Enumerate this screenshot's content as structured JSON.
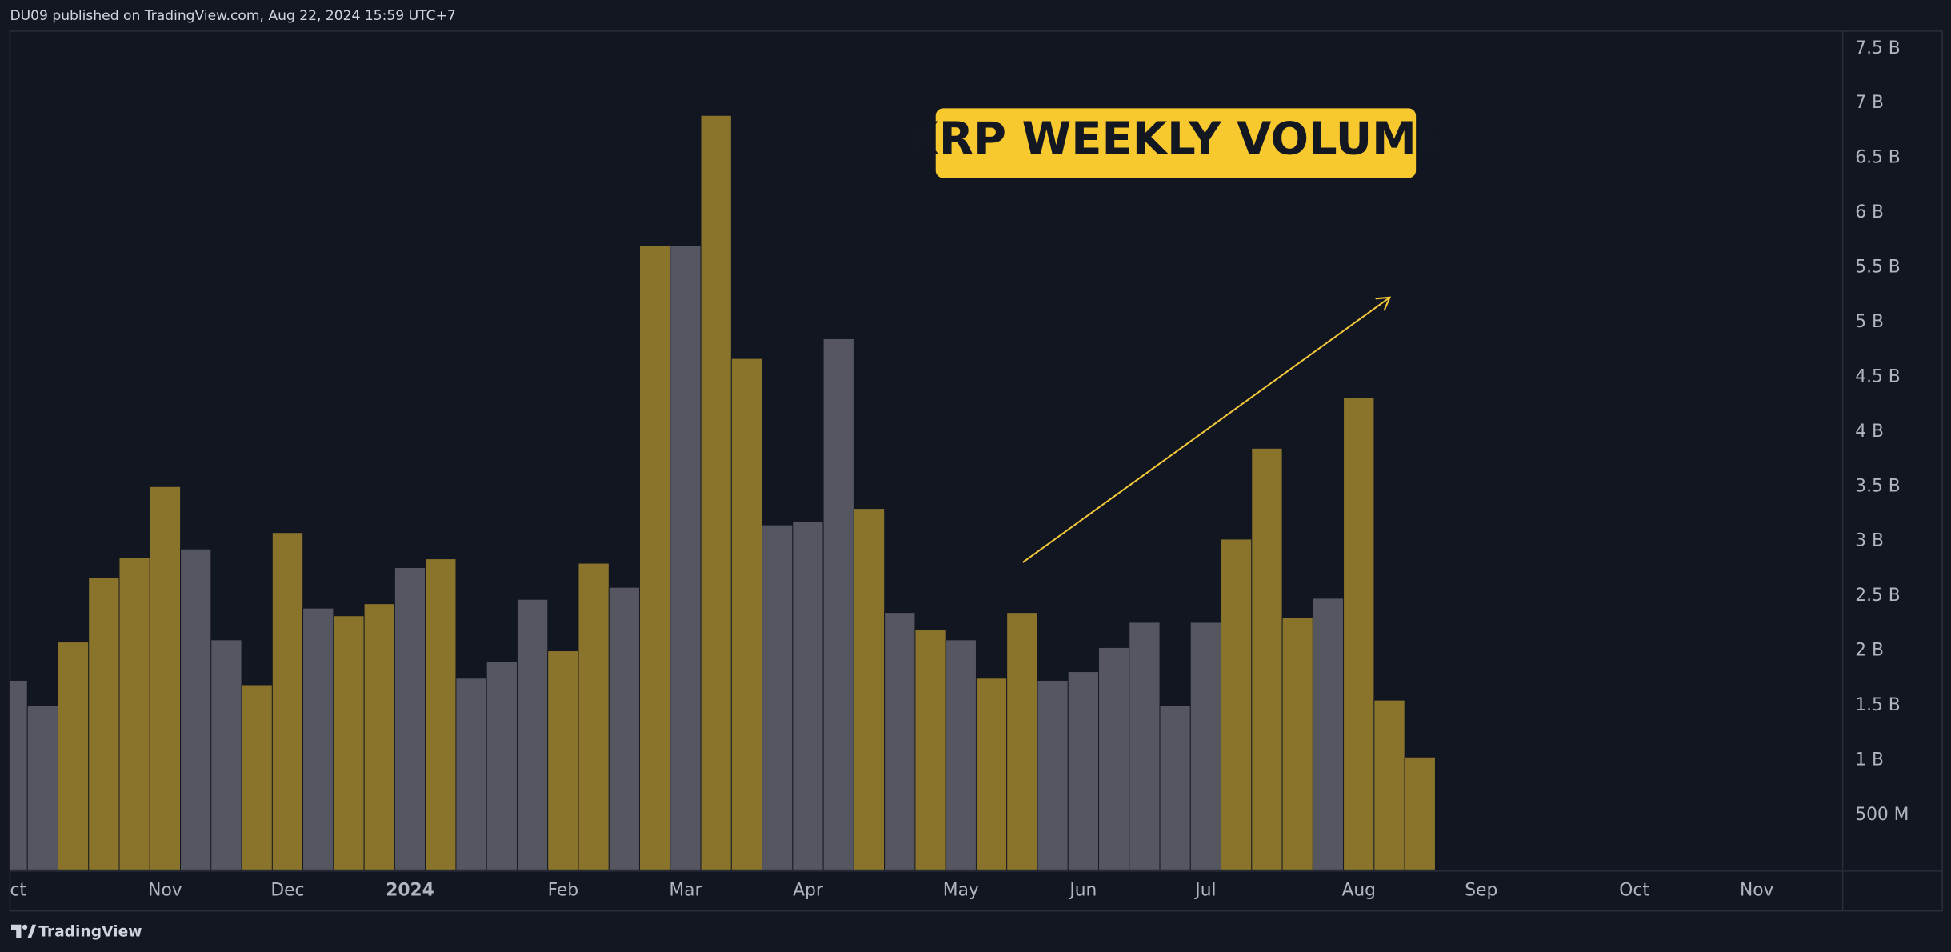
{
  "header": {
    "text": "DU09 published on TradingView.com, Aug 22, 2024 15:59 UTC+7"
  },
  "footer": {
    "brand": "TradingView"
  },
  "chart_data": {
    "type": "bar",
    "title": "XRP WEEKLY VOLUME",
    "categories": [
      "ct",
      null,
      null,
      null,
      null,
      "Nov",
      null,
      null,
      null,
      "Dec",
      null,
      null,
      null,
      "2024",
      null,
      null,
      null,
      null,
      "Feb",
      null,
      null,
      null,
      "Mar",
      null,
      null,
      null,
      "Apr",
      null,
      null,
      null,
      null,
      "May",
      null,
      null,
      null,
      "Jun",
      null,
      null,
      null,
      "Jul",
      null,
      null,
      null,
      null,
      "Aug",
      null,
      null,
      null,
      "Sep",
      null,
      null,
      null,
      null,
      "Oct",
      null,
      null,
      null,
      "Nov",
      null,
      null
    ],
    "values": [
      1.73,
      1.5,
      2.08,
      2.67,
      2.85,
      3.5,
      2.93,
      2.1,
      1.69,
      3.08,
      2.39,
      2.32,
      2.43,
      2.76,
      2.84,
      1.75,
      1.9,
      2.47,
      2.0,
      2.8,
      2.58,
      5.7,
      5.7,
      6.89,
      4.67,
      3.15,
      3.18,
      4.85,
      3.3,
      2.35,
      2.19,
      2.1,
      1.75,
      2.35,
      1.73,
      1.81,
      2.03,
      2.26,
      1.5,
      2.26,
      3.02,
      3.85,
      2.3,
      2.48,
      4.31,
      1.55,
      1.03,
      null,
      null,
      null,
      null,
      null,
      null,
      null,
      null,
      null,
      null,
      null,
      null,
      null
    ],
    "colors": [
      "#55565f",
      "#55565f",
      "#8a742c",
      "#8a742c",
      "#8a742c",
      "#8a742c",
      "#55565f",
      "#55565f",
      "#8a742c",
      "#8a742c",
      "#55565f",
      "#8a742c",
      "#8a742c",
      "#55565f",
      "#8a742c",
      "#55565f",
      "#55565f",
      "#55565f",
      "#8a742c",
      "#8a742c",
      "#55565f",
      "#8a742c",
      "#55565f",
      "#8a742c",
      "#8a742c",
      "#55565f",
      "#55565f",
      "#55565f",
      "#8a742c",
      "#55565f",
      "#8a742c",
      "#55565f",
      "#8a742c",
      "#8a742c",
      "#55565f",
      "#55565f",
      "#55565f",
      "#55565f",
      "#55565f",
      "#55565f",
      "#8a742c",
      "#8a742c",
      "#8a742c",
      "#55565f",
      "#8a742c",
      "#8a742c",
      "#8a742c",
      null,
      null,
      null,
      null,
      null,
      null,
      null,
      null,
      null,
      null,
      null,
      null,
      null
    ],
    "ylim": [
      0,
      7.66
    ],
    "yticks": [
      {
        "value": 0.5,
        "label": "500 M"
      },
      {
        "value": 1,
        "label": "1 B"
      },
      {
        "value": 1.5,
        "label": "1.5 B"
      },
      {
        "value": 2,
        "label": "2 B"
      },
      {
        "value": 2.5,
        "label": "2.5 B"
      },
      {
        "value": 3,
        "label": "3 B"
      },
      {
        "value": 3.5,
        "label": "3.5 B"
      },
      {
        "value": 4,
        "label": "4 B"
      },
      {
        "value": 4.5,
        "label": "4.5 B"
      },
      {
        "value": 5,
        "label": "5 B"
      },
      {
        "value": 5.5,
        "label": "5.5 B"
      },
      {
        "value": 6,
        "label": "6 B"
      },
      {
        "value": 6.5,
        "label": "6.5 B"
      },
      {
        "value": 7,
        "label": "7 B"
      },
      {
        "value": 7.5,
        "label": "7.5 B"
      }
    ],
    "grid": false
  }
}
